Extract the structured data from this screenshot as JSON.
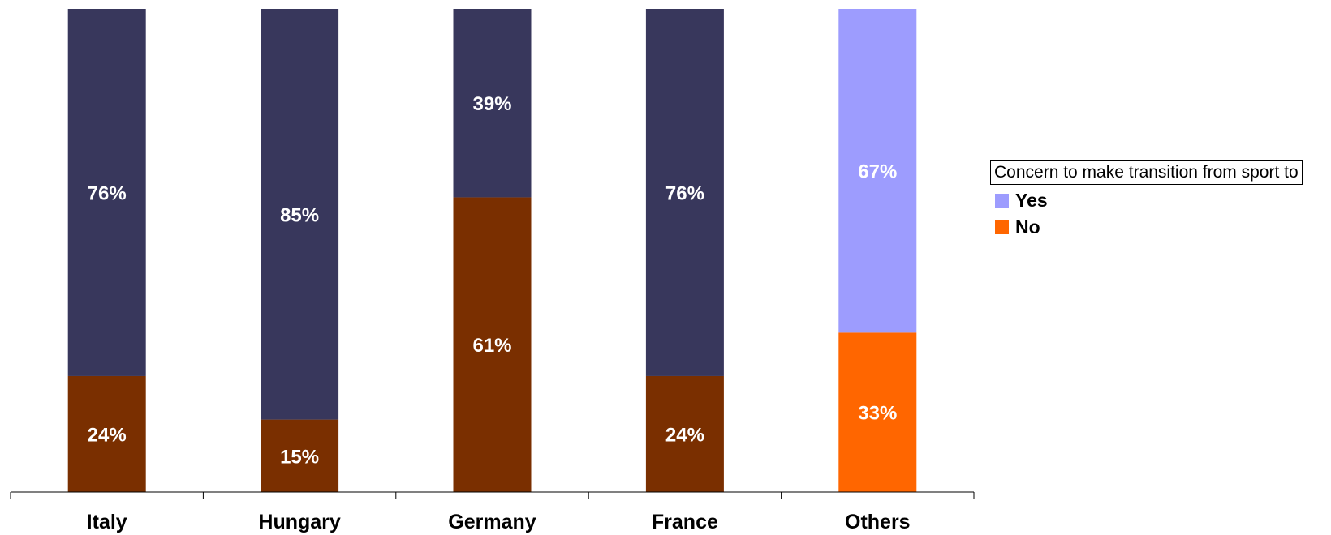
{
  "chart_data": {
    "type": "bar",
    "stacked": true,
    "categories": [
      "Italy",
      "Hungary",
      "Germany",
      "France",
      "Others"
    ],
    "series": [
      {
        "name": "No",
        "values": [
          24,
          15,
          61,
          24,
          33
        ],
        "labels": [
          "24%",
          "15%",
          "61%",
          "24%",
          "33%"
        ],
        "colors": [
          "#7a2f00",
          "#7a2f00",
          "#7a2f00",
          "#7a2f00",
          "#ff6600"
        ]
      },
      {
        "name": "Yes",
        "values": [
          76,
          85,
          39,
          76,
          67
        ],
        "labels": [
          "76%",
          "85%",
          "39%",
          "76%",
          "67%"
        ],
        "colors": [
          "#38375c",
          "#38375c",
          "#38375c",
          "#38375c",
          "#9d9cfe"
        ]
      }
    ],
    "ylim": [
      0,
      100
    ],
    "grid": false,
    "legend": {
      "title": "Concern to make transition from sport to",
      "position": "right",
      "items": [
        {
          "label": "Yes",
          "color": "#9d9cfe"
        },
        {
          "label": "No",
          "color": "#ff6600"
        }
      ]
    },
    "data_label_color": "#ffffff",
    "axis_color": "#000000"
  }
}
